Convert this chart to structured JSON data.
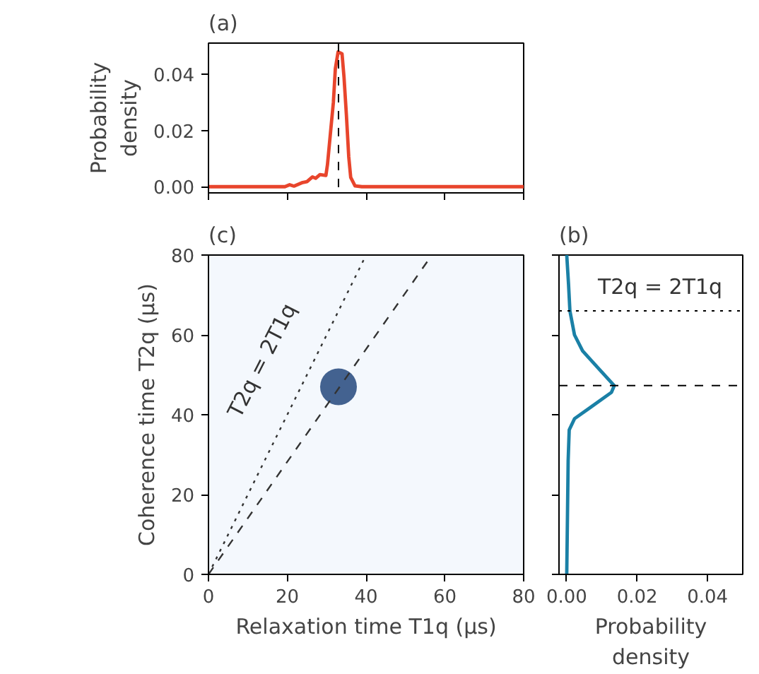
{
  "chart_data": [
    {
      "type": "line",
      "title": "(a)",
      "ylabel": "Probability\ndensity",
      "xlim": [
        0,
        80
      ],
      "ylim": [
        -0.0022,
        0.0511
      ],
      "xticks": [
        0,
        20,
        40,
        60,
        80
      ],
      "yticks": [
        {
          "value": 0,
          "label": "0.00"
        },
        {
          "value": 0.02,
          "label": "0.02"
        },
        {
          "value": 0.04,
          "label": "0.04"
        }
      ],
      "tick_labels": "y",
      "grid": false,
      "series": [
        {
          "color": "#e8452c",
          "x": [
            0,
            19.4,
            20.6,
            21.7,
            23.9,
            25,
            26.4,
            27.2,
            28.3,
            29.8,
            30.2,
            31.1,
            31.7,
            32.2,
            32.9,
            33.9,
            34.4,
            35,
            35.6,
            36.1,
            37.2,
            38.9,
            80
          ],
          "values": [
            0,
            0,
            0.0007,
            0.0002,
            0.0015,
            0.0018,
            0.0035,
            0.003,
            0.0043,
            0.004,
            0.0078,
            0.0212,
            0.03,
            0.042,
            0.048,
            0.0473,
            0.039,
            0.0257,
            0.0107,
            0.0033,
            0.0003,
            0,
            0
          ]
        }
      ],
      "ref_lines": [
        {
          "axis": "x",
          "value": 33,
          "color": "#000000",
          "line_style": "dashed"
        }
      ]
    },
    {
      "type": "scatter",
      "title": "(c)",
      "xlabel": "Relaxation time T1q (μs)",
      "ylabel": "Coherence time T2q (μs)",
      "xlim": [
        0,
        80
      ],
      "ylim": [
        0,
        80
      ],
      "xticks": [
        0,
        20,
        40,
        60,
        80
      ],
      "yticks": [
        0,
        20,
        40,
        60,
        80
      ],
      "grid": false,
      "marker": "circle",
      "series": [
        {
          "type": "scatter",
          "color": "#08306b",
          "x": [
            33
          ],
          "values": [
            47
          ]
        },
        {
          "type": "line",
          "color": "#333333",
          "line_style": "dotted",
          "marker": "none",
          "x": [
            0,
            40
          ],
          "values": [
            0,
            80
          ]
        },
        {
          "type": "line",
          "color": "#333333",
          "line_style": "dashed",
          "marker": "none",
          "x": [
            0,
            56.7
          ],
          "values": [
            0,
            80
          ]
        }
      ],
      "annotations": [
        "T2q = 2T1q"
      ]
    },
    {
      "type": "line",
      "title": "(b)",
      "xlabel": "Probability\ndensity",
      "xlim": [
        -0.0022,
        0.05
      ],
      "ylim": [
        0,
        80
      ],
      "xticks": [
        {
          "value": 0,
          "label": "0.00"
        },
        {
          "value": 0.02,
          "label": "0.02"
        },
        {
          "value": 0.04,
          "label": "0.04"
        }
      ],
      "yticks": [
        0,
        20,
        40,
        60,
        80
      ],
      "tick_labels": "x",
      "grid": false,
      "series": [
        {
          "color": "#1a80a6",
          "x": [
            0,
            0.0004,
            0.0007,
            0.0022,
            0.0067,
            0.0127,
            0.0135,
            0.009,
            0.0045,
            0.0022,
            0.0009,
            0.0005,
            0
          ],
          "values": [
            0,
            28.5,
            36.2,
            39,
            41.8,
            45.6,
            47.3,
            51.6,
            56,
            60,
            66,
            72.8,
            80
          ]
        }
      ],
      "ref_lines": [
        {
          "axis": "y",
          "value": 47.3,
          "color": "#000000",
          "line_style": "dashed"
        },
        {
          "axis": "y",
          "value": 66,
          "color": "#000000",
          "line_style": "dotted"
        }
      ],
      "annotations": [
        "T2q = 2T1q"
      ]
    }
  ]
}
